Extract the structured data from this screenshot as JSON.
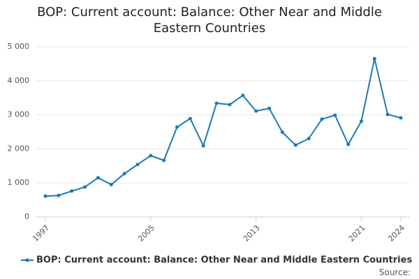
{
  "chart_data": {
    "type": "line",
    "title": "BOP: Current account: Balance: Other Near and Middle Eastern Countries",
    "x": [
      1997,
      1998,
      1999,
      2000,
      2001,
      2002,
      2003,
      2004,
      2005,
      2006,
      2007,
      2008,
      2009,
      2010,
      2011,
      2012,
      2013,
      2014,
      2015,
      2016,
      2017,
      2018,
      2019,
      2020,
      2021,
      2022,
      2023,
      2024
    ],
    "series": [
      {
        "name": "BOP: Current account: Balance: Other Near and Middle Eastern Countries",
        "color": "#1a7ab5",
        "values": [
          610,
          630,
          760,
          880,
          1150,
          950,
          1270,
          1540,
          1800,
          1660,
          2640,
          2890,
          2090,
          3340,
          3300,
          3570,
          3110,
          3190,
          2490,
          2110,
          2300,
          2870,
          2990,
          2130,
          2810,
          4650,
          3010,
          2910
        ]
      }
    ],
    "xlim": [
      1997,
      2024
    ],
    "xticks": [
      1997,
      2005,
      2013,
      2021,
      2024
    ],
    "ylim": [
      0,
      5000
    ],
    "yticks": [
      0,
      {
        "value": 1000,
        "label": "1 000"
      },
      {
        "value": 2000,
        "label": "2 000"
      },
      {
        "value": 3000,
        "label": "3 000"
      },
      {
        "value": 4000,
        "label": "4 000"
      },
      {
        "value": 5000,
        "label": "5 000"
      }
    ],
    "grid": true,
    "legend": "bottom",
    "source": "Source:"
  }
}
